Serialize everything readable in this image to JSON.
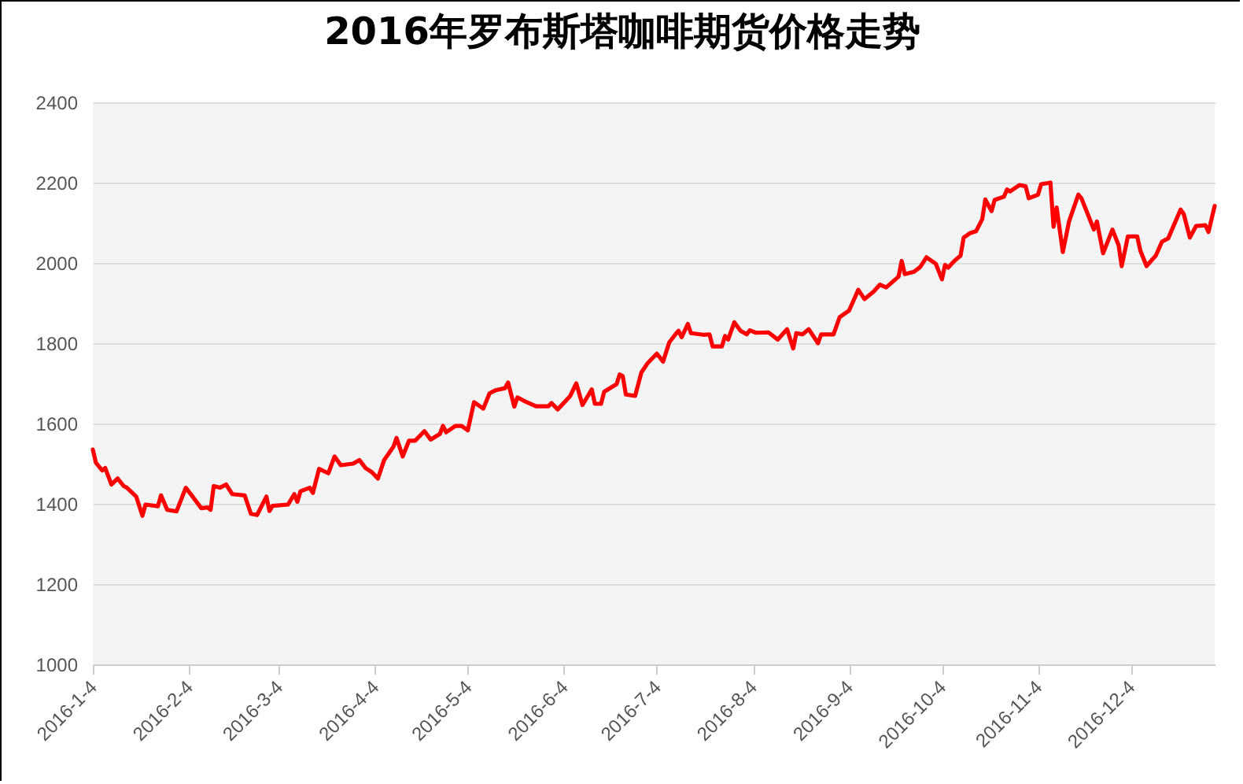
{
  "chart_data": {
    "type": "line",
    "title": "2016年罗布斯塔咖啡期货价格走势",
    "x": [
      "2016-01-04",
      "2016-01-05",
      "2016-01-07",
      "2016-01-08",
      "2016-01-10",
      "2016-01-12",
      "2016-01-14",
      "2016-01-15",
      "2016-01-18",
      "2016-01-20",
      "2016-01-21",
      "2016-01-25",
      "2016-01-26",
      "2016-01-28",
      "2016-01-31",
      "2016-02-03",
      "2016-02-05",
      "2016-02-08",
      "2016-02-10",
      "2016-02-11",
      "2016-02-12",
      "2016-02-14",
      "2016-02-16",
      "2016-02-18",
      "2016-02-22",
      "2016-02-24",
      "2016-02-26",
      "2016-02-29",
      "2016-03-01",
      "2016-03-02",
      "2016-03-07",
      "2016-03-09",
      "2016-03-10",
      "2016-03-11",
      "2016-03-14",
      "2016-03-15",
      "2016-03-17",
      "2016-03-20",
      "2016-03-22",
      "2016-03-24",
      "2016-03-28",
      "2016-03-30",
      "2016-04-01",
      "2016-04-03",
      "2016-04-05",
      "2016-04-07",
      "2016-04-10",
      "2016-04-11",
      "2016-04-13",
      "2016-04-15",
      "2016-04-17",
      "2016-04-20",
      "2016-04-22",
      "2016-04-25",
      "2016-04-26",
      "2016-04-27",
      "2016-04-30",
      "2016-05-02",
      "2016-05-04",
      "2016-05-06",
      "2016-05-09",
      "2016-05-11",
      "2016-05-13",
      "2016-05-16",
      "2016-05-17",
      "2016-05-19",
      "2016-05-20",
      "2016-05-23",
      "2016-05-26",
      "2016-05-30",
      "2016-05-31",
      "2016-06-02",
      "2016-06-06",
      "2016-06-08",
      "2016-06-10",
      "2016-06-13",
      "2016-06-14",
      "2016-06-16",
      "2016-06-17",
      "2016-06-21",
      "2016-06-22",
      "2016-06-23",
      "2016-06-24",
      "2016-06-27",
      "2016-06-29",
      "2016-07-01",
      "2016-07-04",
      "2016-07-06",
      "2016-07-08",
      "2016-07-10",
      "2016-07-11",
      "2016-07-12",
      "2016-07-14",
      "2016-07-15",
      "2016-07-19",
      "2016-07-21",
      "2016-07-22",
      "2016-07-25",
      "2016-07-26",
      "2016-07-27",
      "2016-07-29",
      "2016-07-31",
      "2016-08-02",
      "2016-08-03",
      "2016-08-05",
      "2016-08-09",
      "2016-08-12",
      "2016-08-15",
      "2016-08-17",
      "2016-08-18",
      "2016-08-20",
      "2016-08-22",
      "2016-08-25",
      "2016-08-26",
      "2016-08-30",
      "2016-09-01",
      "2016-09-04",
      "2016-09-07",
      "2016-09-09",
      "2016-09-12",
      "2016-09-14",
      "2016-09-16",
      "2016-09-20",
      "2016-09-21",
      "2016-09-22",
      "2016-09-25",
      "2016-09-27",
      "2016-09-29",
      "2016-10-02",
      "2016-10-04",
      "2016-10-05",
      "2016-10-06",
      "2016-10-08",
      "2016-10-10",
      "2016-10-11",
      "2016-10-13",
      "2016-10-15",
      "2016-10-17",
      "2016-10-18",
      "2016-10-20",
      "2016-10-21",
      "2016-10-24",
      "2016-10-25",
      "2016-10-26",
      "2016-10-29",
      "2016-10-31",
      "2016-11-01",
      "2016-11-04",
      "2016-11-05",
      "2016-11-08",
      "2016-11-09",
      "2016-11-10",
      "2016-11-12",
      "2016-11-14",
      "2016-11-17",
      "2016-11-18",
      "2016-11-21",
      "2016-11-22",
      "2016-11-23",
      "2016-11-25",
      "2016-11-28",
      "2016-11-30",
      "2016-12-01",
      "2016-12-03",
      "2016-12-06",
      "2016-12-07",
      "2016-12-09",
      "2016-12-12",
      "2016-12-14",
      "2016-12-16",
      "2016-12-20",
      "2016-12-21",
      "2016-12-23",
      "2016-12-25",
      "2016-12-28",
      "2016-12-29",
      "2016-12-31"
    ],
    "series": [
      {
        "color": "#ff0000",
        "values": [
          1535,
          1502,
          1483,
          1489,
          1448,
          1463,
          1444,
          1440,
          1418,
          1370,
          1398,
          1394,
          1421,
          1385,
          1381,
          1440,
          1420,
          1389,
          1391,
          1385,
          1444,
          1440,
          1448,
          1424,
          1421,
          1375,
          1372,
          1418,
          1382,
          1395,
          1398,
          1424,
          1405,
          1431,
          1440,
          1427,
          1487,
          1476,
          1518,
          1496,
          1500,
          1509,
          1489,
          1479,
          1463,
          1509,
          1542,
          1564,
          1518,
          1557,
          1557,
          1581,
          1560,
          1574,
          1594,
          1578,
          1594,
          1594,
          1583,
          1653,
          1637,
          1675,
          1683,
          1688,
          1702,
          1642,
          1665,
          1653,
          1643,
          1643,
          1651,
          1635,
          1668,
          1700,
          1646,
          1685,
          1649,
          1649,
          1679,
          1698,
          1722,
          1718,
          1672,
          1669,
          1727,
          1750,
          1774,
          1754,
          1802,
          1822,
          1831,
          1815,
          1848,
          1825,
          1821,
          1822,
          1792,
          1792,
          1818,
          1809,
          1852,
          1831,
          1822,
          1832,
          1826,
          1827,
          1809,
          1835,
          1787,
          1825,
          1822,
          1835,
          1800,
          1822,
          1822,
          1865,
          1881,
          1933,
          1910,
          1929,
          1946,
          1939,
          1966,
          2005,
          1972,
          1978,
          1990,
          2014,
          1998,
          1959,
          1995,
          1988,
          2005,
          2018,
          2063,
          2074,
          2079,
          2109,
          2158,
          2129,
          2157,
          2165,
          2183,
          2178,
          2194,
          2191,
          2161,
          2170,
          2196,
          2200,
          2090,
          2138,
          2027,
          2103,
          2170,
          2161,
          2103,
          2083,
          2103,
          2024,
          2083,
          2044,
          1992,
          2066,
          2066,
          2031,
          1992,
          2018,
          2053,
          2061,
          2133,
          2122,
          2063,
          2092,
          2094,
          2077,
          2142
        ]
      }
    ],
    "xlim": [
      "2016-01-04",
      "2016-12-31"
    ],
    "xticks": [
      {
        "value": "2016-01-04",
        "label": "2016-1-4"
      },
      {
        "value": "2016-02-04",
        "label": "2016-2-4"
      },
      {
        "value": "2016-03-04",
        "label": "2016-3-4"
      },
      {
        "value": "2016-04-04",
        "label": "2016-4-4"
      },
      {
        "value": "2016-05-04",
        "label": "2016-5-4"
      },
      {
        "value": "2016-06-04",
        "label": "2016-6-4"
      },
      {
        "value": "2016-07-04",
        "label": "2016-7-4"
      },
      {
        "value": "2016-08-04",
        "label": "2016-8-4"
      },
      {
        "value": "2016-09-04",
        "label": "2016-9-4"
      },
      {
        "value": "2016-10-04",
        "label": "2016-10-4"
      },
      {
        "value": "2016-11-04",
        "label": "2016-11-4"
      },
      {
        "value": "2016-12-04",
        "label": "2016-12-4"
      }
    ],
    "ylim": [
      1000,
      2400
    ],
    "yticks": [
      1000,
      1200,
      1400,
      1600,
      1800,
      2000,
      2200,
      2400
    ],
    "grid": "y",
    "line_style": "solid"
  }
}
